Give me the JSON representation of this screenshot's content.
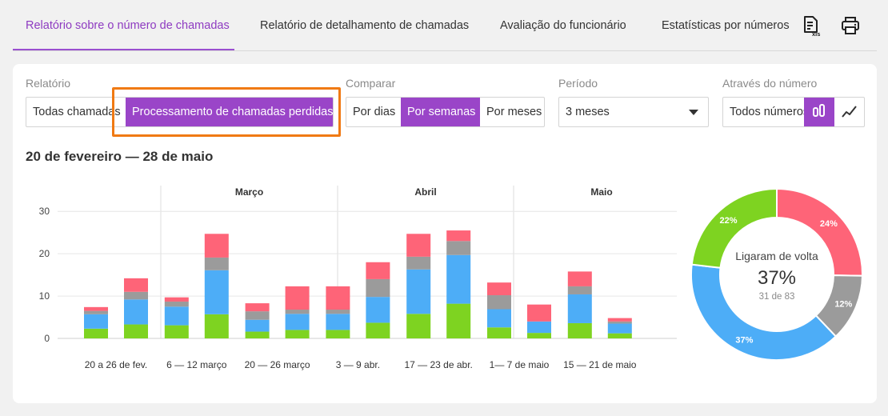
{
  "tabs": [
    {
      "label": "Relatório sobre o número de chamadas",
      "active": true
    },
    {
      "label": "Relatório de detalhamento de chamadas",
      "active": false
    },
    {
      "label": "Avaliação do funcionário",
      "active": false
    },
    {
      "label": "Estatísticas por números",
      "active": false
    }
  ],
  "tools": {
    "xls_icon": "xls-export-icon",
    "print_icon": "printer-icon",
    "xls_text": "xls"
  },
  "filters": {
    "report": {
      "label": "Relatório",
      "options": [
        "Todas chamadas",
        "Processamento de chamadas perdidas"
      ],
      "selected": "Processamento de chamadas perdidas"
    },
    "compare": {
      "label": "Comparar",
      "options": [
        "Por dias",
        "Por semanas",
        "Por meses"
      ],
      "selected": "Por semanas"
    },
    "period": {
      "label": "Período",
      "value": "3 meses"
    },
    "number": {
      "label": "Através do número",
      "value": "Todos números",
      "view_modes": [
        "bar-chart-icon",
        "line-chart-icon"
      ],
      "selected_view": "bar-chart-icon"
    }
  },
  "date_range": "20 de fevereiro — 28 de maio",
  "colors": {
    "green": "#7ed321",
    "blue": "#4dadf7",
    "gray": "#9b9b9b",
    "red": "#fe6478",
    "accent": "#9a45c8",
    "highlight": "#f07a14"
  },
  "chart_data": [
    {
      "type": "bar",
      "stacked": true,
      "month_labels": [
        "Março",
        "Abril",
        "Maio"
      ],
      "categories": [
        "20 a 26 de fev.",
        "",
        "6 — 12 março",
        "",
        "20 — 26 março",
        "",
        "3 — 9 abr.",
        "",
        "17 — 23 de abr.",
        "",
        "1— 7 de maio",
        "",
        "15 — 21 de maio",
        ""
      ],
      "series": [
        {
          "color": "#7ed321",
          "values": [
            2.3,
            3.3,
            3.1,
            5.7,
            1.6,
            2.0,
            2.0,
            3.7,
            5.8,
            8.2,
            2.6,
            1.3,
            3.6,
            1.2
          ]
        },
        {
          "color": "#4dadf7",
          "values": [
            3.4,
            5.9,
            4.4,
            10.4,
            2.8,
            3.8,
            3.8,
            6.1,
            10.5,
            11.5,
            4.3,
            2.7,
            6.8,
            2.3
          ]
        },
        {
          "color": "#9b9b9b",
          "values": [
            0.8,
            1.8,
            1.2,
            3.0,
            2.0,
            1.0,
            1.0,
            4.2,
            3.0,
            3.3,
            3.3,
            0.0,
            1.9,
            0.5
          ]
        },
        {
          "color": "#fe6478",
          "values": [
            0.9,
            3.2,
            1.0,
            5.6,
            1.9,
            5.5,
            5.5,
            4.0,
            5.4,
            2.5,
            3.0,
            4.0,
            3.5,
            0.8
          ]
        }
      ],
      "yticks": [
        0,
        10,
        20,
        30
      ],
      "ylim": [
        0,
        32
      ],
      "grid": true
    },
    {
      "type": "pie",
      "donut": true,
      "center_title": "Ligaram de volta",
      "center_value": "37%",
      "center_sub": "31 de 83",
      "slices": [
        {
          "label": "24%",
          "value": 24,
          "color": "#fe6478"
        },
        {
          "label": "12%",
          "value": 12,
          "color": "#9b9b9b"
        },
        {
          "label": "37%",
          "value": 37,
          "color": "#4dadf7"
        },
        {
          "label": "22%",
          "value": 22,
          "color": "#7ed321"
        }
      ]
    }
  ]
}
